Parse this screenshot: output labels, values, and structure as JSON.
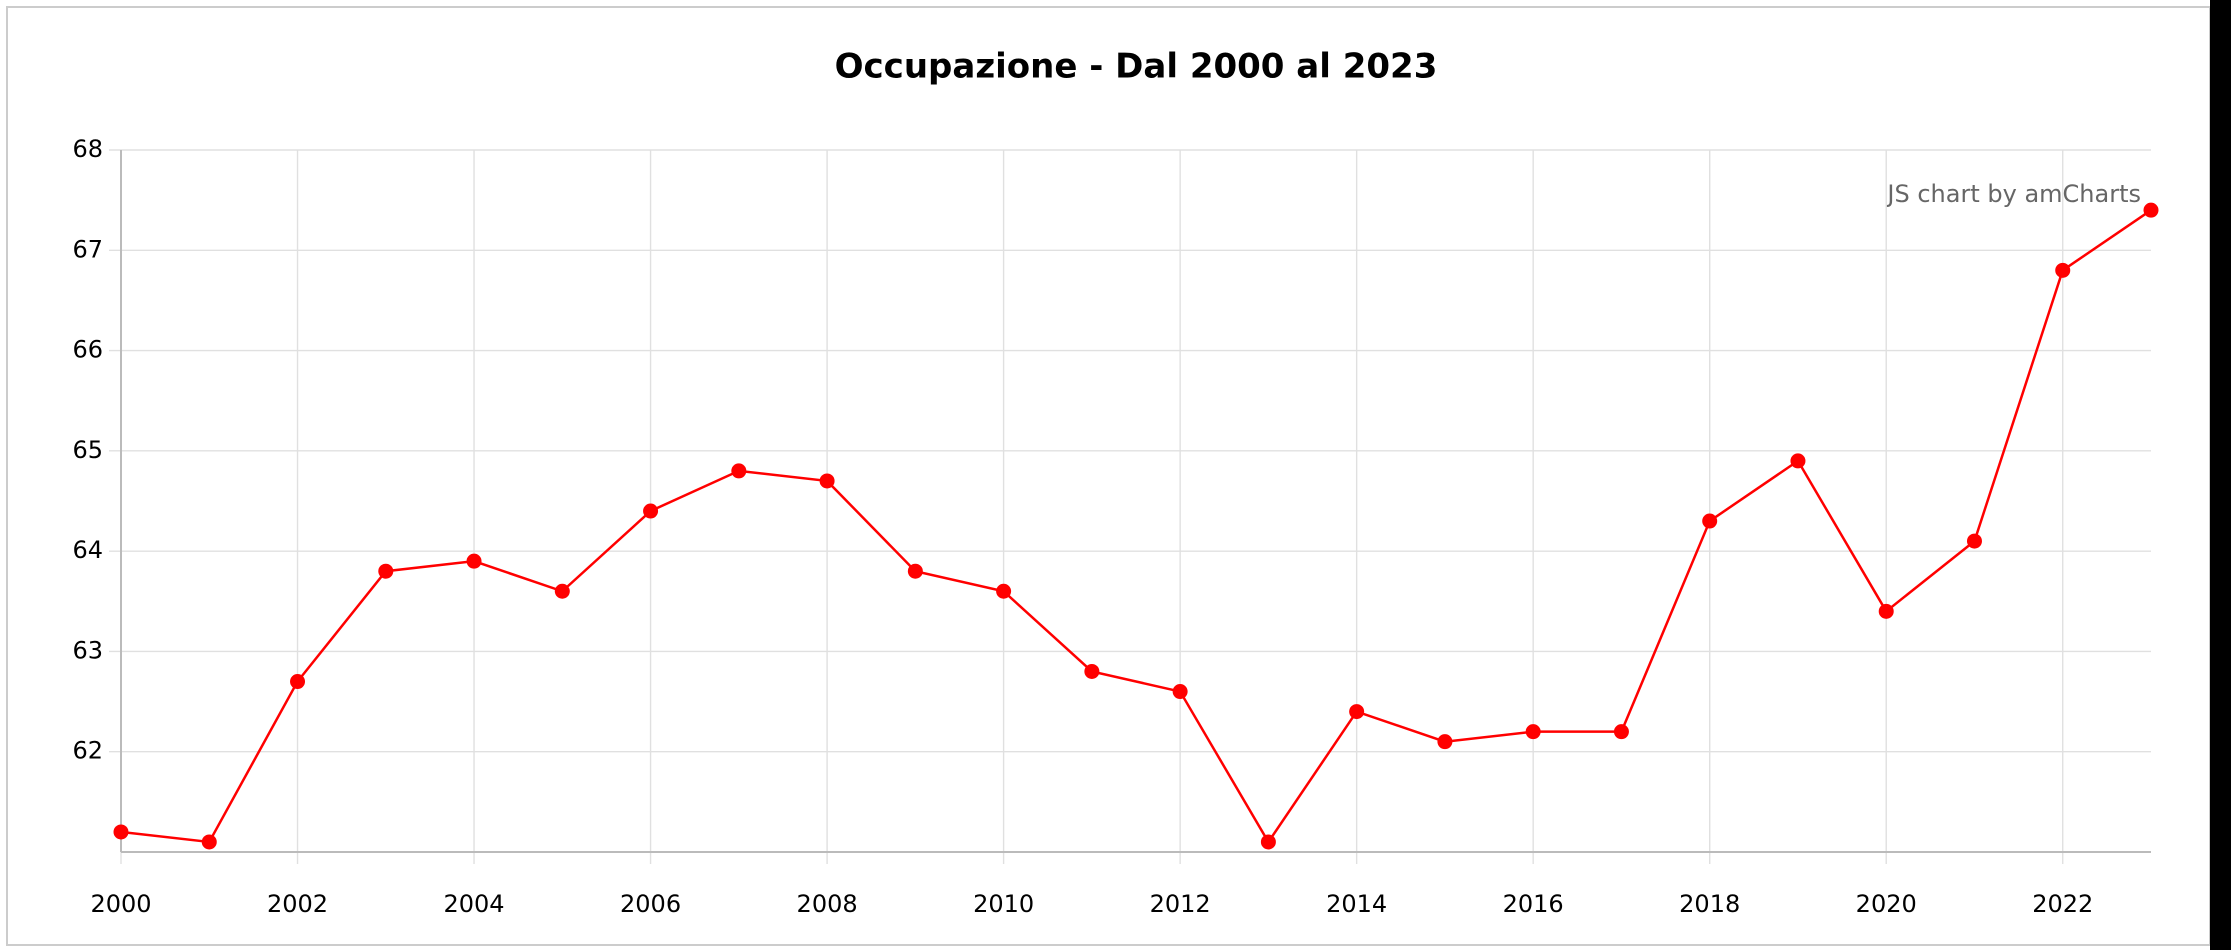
{
  "chart_data": {
    "type": "line",
    "title": "Occupazione - Dal 2000 al 2023",
    "watermark": "JS chart by amCharts",
    "x": [
      2000,
      2001,
      2002,
      2003,
      2004,
      2005,
      2006,
      2007,
      2008,
      2009,
      2010,
      2011,
      2012,
      2013,
      2014,
      2015,
      2016,
      2017,
      2018,
      2019,
      2020,
      2021,
      2022,
      2023
    ],
    "series": [
      {
        "color": "#ff0000",
        "values": [
          61.2,
          61.1,
          62.7,
          63.8,
          63.9,
          63.6,
          64.4,
          64.8,
          64.7,
          63.8,
          63.6,
          62.8,
          62.6,
          61.1,
          62.4,
          62.1,
          62.2,
          62.2,
          64.3,
          64.9,
          63.4,
          64.1,
          66.8,
          67.4
        ]
      }
    ],
    "xlim": [
      2000,
      2023
    ],
    "xticks": [
      2000,
      2002,
      2004,
      2006,
      2008,
      2010,
      2012,
      2014,
      2016,
      2018,
      2020,
      2022
    ],
    "ylim": [
      61,
      68
    ],
    "yticks": [
      62,
      63,
      64,
      65,
      66,
      67,
      68
    ],
    "grid": true
  }
}
